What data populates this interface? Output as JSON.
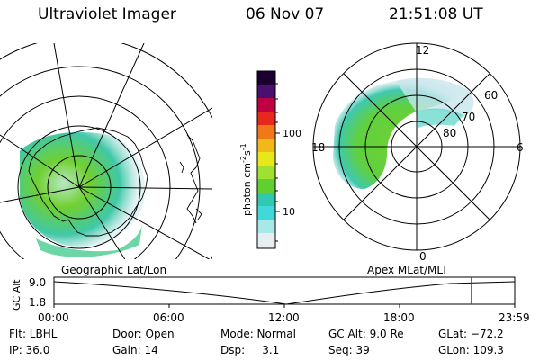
{
  "header": {
    "title": "Ultraviolet Imager",
    "date": "06 Nov 07",
    "time": "21:51:08 UT"
  },
  "colorbar": {
    "label": "photon cm",
    "label_sup1": "-2",
    "label_mid": "s",
    "label_sup2": "-1",
    "ticks": [
      "100",
      "10"
    ],
    "colors": [
      "#1a0030",
      "#4a1070",
      "#c00040",
      "#e8281c",
      "#f07818",
      "#f0b818",
      "#e8e818",
      "#a0e030",
      "#60d030",
      "#30c8b0",
      "#40d8d8",
      "#a8e8e8",
      "#e6eef0"
    ]
  },
  "geo_panel": {
    "caption": "Geographic Lat/Lon",
    "aurora_color": "#70d030",
    "aurora_edge": "#38c8b8"
  },
  "apex_panel": {
    "caption": "Apex MLat/MLT",
    "mlt_labels": {
      "top": "12",
      "left": "18",
      "right": "6",
      "bottom": "0"
    },
    "lat_labels": [
      "60",
      "70",
      "80"
    ]
  },
  "altplot": {
    "ylabel": "GC Alt",
    "yticks": [
      "9.0",
      "1.8"
    ],
    "xticks": [
      "00:00",
      "06:00",
      "12:00",
      "18:00",
      "23:59"
    ],
    "marker_color": "#cc0000"
  },
  "info": {
    "row1": {
      "flt": "Flt: LBHL",
      "door": "Door: Open",
      "mode": "Mode: Normal",
      "gcalt": "GC Alt: 9.0 Re",
      "glat": "GLat: −72.2"
    },
    "row2": {
      "ip": "IP: 36.0",
      "gain": "Gain: 14",
      "dsp": "Dsp:     3.1",
      "seq": "Seq: 39",
      "glon": "GLon: 109.3"
    }
  }
}
